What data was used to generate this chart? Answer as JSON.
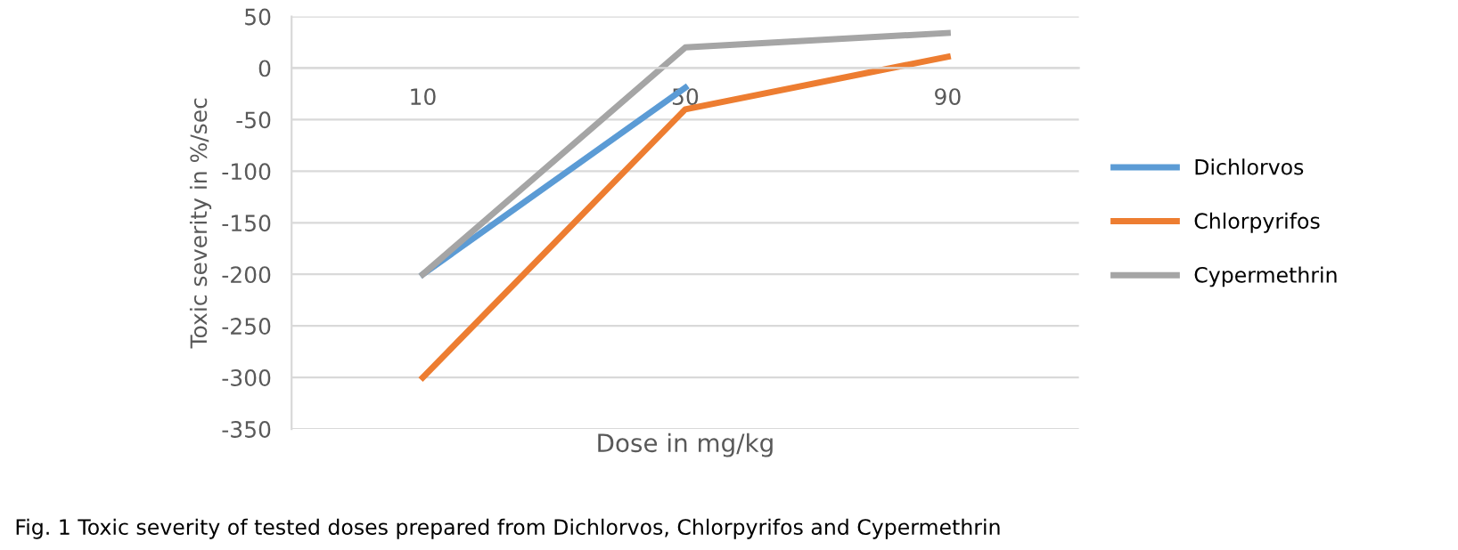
{
  "chart_data": {
    "type": "line",
    "xlabel": "Dose in mg/kg",
    "ylabel": "Toxic severity in %/sec",
    "categories": [
      "10",
      "50",
      "90"
    ],
    "series": [
      {
        "name": "Dichlorvos",
        "color": "#5b9bd5",
        "values": [
          -200,
          -19,
          null
        ]
      },
      {
        "name": "Chlorpyrifos",
        "color": "#ed7d31",
        "values": [
          -300,
          -40,
          11
        ]
      },
      {
        "name": "Cypermethrin",
        "color": "#a5a5a5",
        "values": [
          -200,
          20,
          34
        ]
      }
    ],
    "ylim": [
      -350,
      50
    ],
    "yticks": [
      -350,
      -300,
      -250,
      -200,
      -150,
      -100,
      -50,
      0,
      50
    ],
    "grid": "y",
    "legend": "right",
    "marker": "none",
    "line_style": "solid",
    "annotations": [
      "Fig. 1 Toxic severity of tested doses prepared from Dichlorvos, Chlorpyrifos and Cypermethrin"
    ]
  }
}
